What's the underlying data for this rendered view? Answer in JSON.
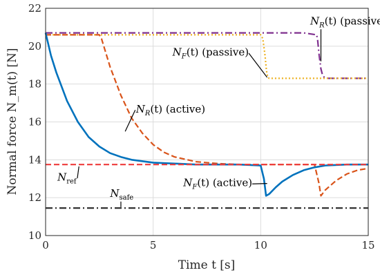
{
  "chart_data": {
    "type": "line",
    "xlabel": "Time t [s]",
    "ylabel": "Normal force N_m(t) [N]",
    "xlim": [
      0,
      15
    ],
    "ylim": [
      10,
      22
    ],
    "xticks": [
      0,
      5,
      10,
      15
    ],
    "yticks": [
      10,
      12,
      14,
      16,
      18,
      20,
      22
    ],
    "grid": true,
    "series": [
      {
        "name": "N_R(t) (passive)",
        "color": "#7e2f8e",
        "style": "dashdot",
        "x": [
          0,
          0.5,
          1,
          2,
          3,
          4,
          5,
          6,
          7,
          8,
          9,
          10,
          11,
          12,
          12.6,
          12.65,
          12.72,
          12.8,
          12.88,
          13.0,
          13.5,
          14,
          15
        ],
        "y": [
          20.7,
          20.7,
          20.7,
          20.7,
          20.7,
          20.7,
          20.7,
          20.7,
          20.7,
          20.7,
          20.7,
          20.7,
          20.7,
          20.7,
          20.6,
          20.3,
          19.5,
          18.8,
          18.45,
          18.3,
          18.3,
          18.3,
          18.3
        ]
      },
      {
        "name": "N_F(t) (passive)",
        "color": "#edb120",
        "style": "dotted",
        "x": [
          0,
          1,
          2,
          3,
          4,
          5,
          6,
          7,
          8,
          9,
          10,
          10.1,
          10.2,
          10.27,
          10.33,
          10.4,
          11,
          12,
          13,
          14,
          15
        ],
        "y": [
          20.6,
          20.6,
          20.6,
          20.6,
          20.6,
          20.6,
          20.6,
          20.6,
          20.6,
          20.6,
          20.6,
          20.4,
          19.5,
          18.7,
          18.35,
          18.3,
          18.3,
          18.3,
          18.3,
          18.3,
          18.3
        ]
      },
      {
        "name": "N_R(t) (active)",
        "color": "#d95319",
        "style": "dashed",
        "x": [
          0,
          1,
          2,
          2.5,
          2.6,
          3,
          3.5,
          4,
          4.5,
          5,
          5.5,
          6,
          7,
          8,
          9,
          10,
          11,
          12,
          12.5,
          12.7,
          12.8,
          13,
          13.5,
          14,
          14.5,
          15
        ],
        "y": [
          20.6,
          20.6,
          20.6,
          20.6,
          20.4,
          18.9,
          17.4,
          16.2,
          15.4,
          14.8,
          14.4,
          14.15,
          13.9,
          13.8,
          13.75,
          13.75,
          13.75,
          13.75,
          13.75,
          12.8,
          12.1,
          12.4,
          12.9,
          13.25,
          13.45,
          13.55
        ]
      },
      {
        "name": "N_F(t) (active)",
        "color": "#0072bd",
        "style": "solid",
        "x": [
          0,
          0.25,
          0.5,
          1,
          1.5,
          2,
          2.5,
          3,
          3.5,
          4,
          5,
          6,
          7,
          8,
          9,
          10,
          10.15,
          10.25,
          10.4,
          10.7,
          11,
          11.5,
          12,
          12.5,
          13,
          14,
          15
        ],
        "y": [
          20.7,
          19.5,
          18.6,
          17.1,
          16.0,
          15.2,
          14.7,
          14.35,
          14.15,
          14.0,
          13.85,
          13.8,
          13.75,
          13.75,
          13.75,
          13.7,
          13.0,
          12.1,
          12.2,
          12.55,
          12.85,
          13.2,
          13.45,
          13.6,
          13.7,
          13.75,
          13.75
        ]
      },
      {
        "name": "N_ref",
        "color": "#ee3b3b",
        "style": "dashed",
        "x": [
          0,
          15
        ],
        "y": [
          13.75,
          13.75
        ]
      },
      {
        "name": "N_safe",
        "color": "#262626",
        "style": "dashdot",
        "x": [
          0,
          15
        ],
        "y": [
          11.45,
          11.45
        ]
      }
    ],
    "annotations": [
      {
        "label_id": "nr-passive-label",
        "main": "N",
        "sub": "R",
        "rest": "(t) (passive)",
        "text_x": 12.3,
        "text_y": 21.15,
        "arrow_to": [
          12.8,
          19.2
        ]
      },
      {
        "label_id": "nf-passive-label",
        "main": "N",
        "sub": "F",
        "rest": "(t) (passive)",
        "text_x": 5.9,
        "text_y": 19.5,
        "arrow_to": [
          10.3,
          18.35
        ]
      },
      {
        "label_id": "nr-active-label",
        "main": "N",
        "sub": "R",
        "rest": "(t) (active)",
        "text_x": 4.2,
        "text_y": 16.5,
        "arrow_to": [
          3.7,
          15.5
        ]
      },
      {
        "label_id": "nf-active-label",
        "main": "N",
        "sub": "F",
        "rest": "(t) (active)",
        "text_x": 6.4,
        "text_y": 12.6,
        "arrow_to": [
          10.3,
          12.75
        ]
      },
      {
        "label_id": "nref-label",
        "main": "N",
        "sub": "ref",
        "rest": "",
        "text_x": 0.55,
        "text_y": 12.9,
        "arrow_to": [
          1.55,
          13.65
        ]
      },
      {
        "label_id": "nsafe-label",
        "main": "N",
        "sub": "safe",
        "rest": "",
        "text_x": 3.0,
        "text_y": 12.05,
        "arrow_to": [
          3.5,
          11.5
        ]
      }
    ]
  }
}
